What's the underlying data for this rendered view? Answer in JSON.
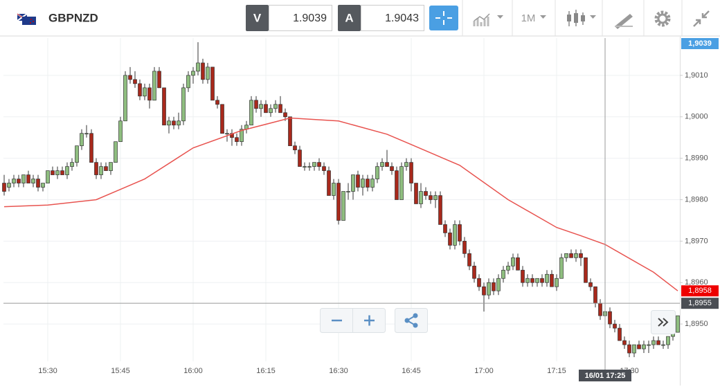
{
  "header": {
    "symbol": "GBPNZD",
    "bid": {
      "label": "V",
      "value": 1.9039
    },
    "ask": {
      "label": "A",
      "value": 1.9043
    },
    "timeframe": "1M"
  },
  "chart_data": {
    "type": "candlestick",
    "x": [
      "15:21",
      "15:22",
      "15:23",
      "15:24",
      "15:25",
      "15:26",
      "15:27",
      "15:28",
      "15:29",
      "15:30",
      "15:31",
      "15:32",
      "15:33",
      "15:34",
      "15:35",
      "15:36",
      "15:37",
      "15:38",
      "15:39",
      "15:40",
      "15:41",
      "15:42",
      "15:43",
      "15:44",
      "15:45",
      "15:46",
      "15:47",
      "15:48",
      "15:49",
      "15:50",
      "15:51",
      "15:52",
      "15:53",
      "15:54",
      "15:55",
      "15:56",
      "15:57",
      "15:58",
      "15:59",
      "16:00",
      "16:01",
      "16:02",
      "16:03",
      "16:04",
      "16:05",
      "16:06",
      "16:07",
      "16:08",
      "16:09",
      "16:10",
      "16:11",
      "16:12",
      "16:13",
      "16:14",
      "16:15",
      "16:16",
      "16:17",
      "16:18",
      "16:19",
      "16:20",
      "16:21",
      "16:22",
      "16:23",
      "16:24",
      "16:25",
      "16:26",
      "16:27",
      "16:28",
      "16:29",
      "16:30",
      "16:31",
      "16:32",
      "16:33",
      "16:34",
      "16:35",
      "16:36",
      "16:37",
      "16:38",
      "16:39",
      "16:40",
      "16:41",
      "16:42",
      "16:43",
      "16:44",
      "16:45",
      "16:46",
      "16:47",
      "16:48",
      "16:49",
      "16:50",
      "16:51",
      "16:52",
      "16:53",
      "16:54",
      "16:55",
      "16:56",
      "16:57",
      "16:58",
      "16:59",
      "17:00",
      "17:01",
      "17:02",
      "17:03",
      "17:04",
      "17:05",
      "17:06",
      "17:07",
      "17:08",
      "17:09",
      "17:10",
      "17:11",
      "17:12",
      "17:13",
      "17:14",
      "17:15",
      "17:16",
      "17:17",
      "17:18",
      "17:19",
      "17:20",
      "17:21",
      "17:22",
      "17:23",
      "17:24",
      "17:25",
      "17:26",
      "17:27",
      "17:28",
      "17:29",
      "17:30",
      "17:31",
      "17:32",
      "17:33",
      "17:34",
      "17:35",
      "17:36",
      "17:37",
      "17:38",
      "17:39",
      "17:40"
    ],
    "open": [
      1.8984,
      1.8983,
      1.8984,
      1.8985,
      1.8984,
      1.8986,
      1.8984,
      1.8985,
      1.8983,
      1.8984,
      1.8987,
      1.8986,
      1.8987,
      1.8986,
      1.8988,
      1.8989,
      1.8993,
      1.8996,
      1.8996,
      1.8989,
      1.8986,
      1.8988,
      1.8987,
      1.8989,
      1.8994,
      1.8999,
      1.901,
      1.9009,
      1.9008,
      1.9005,
      1.9007,
      1.9004,
      1.9011,
      1.9007,
      1.8998,
      1.8999,
      1.8998,
      1.8999,
      1.9007,
      1.901,
      1.9011,
      1.9013,
      1.9009,
      1.9012,
      1.9004,
      1.9003,
      1.8996,
      1.8996,
      1.8995,
      1.8994,
      1.8997,
      1.8998,
      1.9004,
      1.9002,
      1.9003,
      1.9001,
      1.9002,
      1.9003,
      1.9001,
      1.9,
      1.8993,
      1.8992,
      1.8988,
      1.8988,
      1.8988,
      1.8989,
      1.8988,
      1.8987,
      1.8981,
      1.8984,
      1.8975,
      1.8982,
      1.8982,
      1.8986,
      1.8983,
      1.8985,
      1.8983,
      1.8985,
      1.8988,
      1.8989,
      1.8988,
      1.8987,
      1.898,
      1.8988,
      1.8989,
      1.8984,
      1.8979,
      1.8982,
      1.8981,
      1.898,
      1.8981,
      1.8974,
      1.8972,
      1.8969,
      1.8974,
      1.897,
      1.8967,
      1.8964,
      1.8961,
      1.8959,
      1.8957,
      1.896,
      1.8958,
      1.8961,
      1.8963,
      1.8964,
      1.8966,
      1.8963,
      1.896,
      1.8961,
      1.896,
      1.8961,
      1.896,
      1.8962,
      1.8959,
      1.8961,
      1.8966,
      1.8967,
      1.8966,
      1.8967,
      1.8966,
      1.896,
      1.8959,
      1.8955,
      1.8952,
      1.8953,
      1.895,
      1.8949,
      1.8946,
      1.8945,
      1.8943,
      1.8945,
      1.8944,
      1.8945,
      1.8945,
      1.8946,
      1.8945,
      1.8945,
      1.8947,
      1.8948
    ],
    "high": [
      1.8986,
      1.8985,
      1.8986,
      1.8986,
      1.8986,
      1.8987,
      1.8986,
      1.8986,
      1.8984,
      1.8987,
      1.8988,
      1.8988,
      1.8988,
      1.8989,
      1.899,
      1.8993,
      1.8997,
      1.8998,
      1.8997,
      1.899,
      1.8989,
      1.8989,
      1.8989,
      1.8994,
      1.9,
      1.9011,
      1.9012,
      1.9011,
      1.9009,
      1.9008,
      1.9008,
      1.9012,
      1.9012,
      1.9007,
      1.9,
      1.9,
      1.9001,
      1.9008,
      1.9011,
      1.9012,
      1.9018,
      1.9014,
      1.9013,
      1.9012,
      1.9005,
      1.9003,
      1.8997,
      1.8997,
      1.8996,
      1.8998,
      1.8999,
      1.9005,
      1.9005,
      1.9004,
      1.9004,
      1.9003,
      1.9004,
      1.9005,
      1.9002,
      1.9,
      1.8994,
      1.8993,
      1.8989,
      1.8989,
      1.8989,
      1.899,
      1.8989,
      1.8988,
      1.8985,
      1.8985,
      1.8982,
      1.8984,
      1.8986,
      1.8987,
      1.8986,
      1.8986,
      1.8986,
      1.8989,
      1.899,
      1.8992,
      1.8989,
      1.8988,
      1.8989,
      1.899,
      1.899,
      1.8984,
      1.8984,
      1.8983,
      1.8982,
      1.8982,
      1.8982,
      1.8975,
      1.8973,
      1.8975,
      1.8975,
      1.8971,
      1.8968,
      1.8965,
      1.8962,
      1.896,
      1.8961,
      1.8961,
      1.8962,
      1.8964,
      1.8965,
      1.8967,
      1.8967,
      1.8964,
      1.8962,
      1.8962,
      1.8961,
      1.8962,
      1.8963,
      1.8963,
      1.8962,
      1.8967,
      1.8967,
      1.8968,
      1.8968,
      1.8968,
      1.8966,
      1.8961,
      1.8959,
      1.8956,
      1.8954,
      1.8954,
      1.8951,
      1.895,
      1.8947,
      1.8946,
      1.8945,
      1.8946,
      1.8946,
      1.8946,
      1.8947,
      1.8947,
      1.8946,
      1.8947,
      1.8949,
      1.8952
    ],
    "low": [
      1.8981,
      1.8982,
      1.8983,
      1.8983,
      1.8983,
      1.8984,
      1.8983,
      1.8982,
      1.8982,
      1.8984,
      1.8986,
      1.8985,
      1.8986,
      1.8985,
      1.8987,
      1.8988,
      1.8992,
      1.8995,
      1.8989,
      1.8985,
      1.8985,
      1.8987,
      1.8986,
      1.8989,
      1.8994,
      1.8999,
      1.9008,
      1.9007,
      1.9004,
      1.9004,
      1.9002,
      1.9004,
      1.9007,
      1.8998,
      1.8996,
      1.8997,
      1.8997,
      1.8998,
      1.9006,
      1.9008,
      1.901,
      1.9008,
      1.9008,
      1.9004,
      1.9002,
      1.8996,
      1.8994,
      1.8993,
      1.8993,
      1.8993,
      1.8996,
      1.8998,
      1.9001,
      1.9,
      1.9001,
      1.9,
      1.9001,
      1.9001,
      1.8999,
      1.8993,
      1.8991,
      1.8988,
      1.8987,
      1.8987,
      1.8987,
      1.8987,
      1.8986,
      1.8981,
      1.898,
      1.8974,
      1.8975,
      1.898,
      1.898,
      1.8982,
      1.8981,
      1.8982,
      1.8982,
      1.8984,
      1.8987,
      1.8988,
      1.8986,
      1.898,
      1.898,
      1.8987,
      1.8982,
      1.8979,
      1.8978,
      1.898,
      1.8979,
      1.8978,
      1.8974,
      1.8971,
      1.8968,
      1.8968,
      1.8969,
      1.8966,
      1.8963,
      1.896,
      1.8958,
      1.8953,
      1.8956,
      1.8957,
      1.8957,
      1.896,
      1.8962,
      1.8963,
      1.8963,
      1.8959,
      1.8959,
      1.8959,
      1.8959,
      1.8959,
      1.8959,
      1.8959,
      1.8958,
      1.8961,
      1.8965,
      1.8966,
      1.8965,
      1.8964,
      1.896,
      1.8958,
      1.8954,
      1.8951,
      1.8951,
      1.8949,
      1.8948,
      1.8946,
      1.8944,
      1.8942,
      1.8942,
      1.8944,
      1.8943,
      1.8943,
      1.8944,
      1.8945,
      1.8944,
      1.8944,
      1.8946,
      1.8948
    ],
    "close": [
      1.8982,
      1.8984,
      1.8985,
      1.8984,
      1.8986,
      1.8984,
      1.8985,
      1.8983,
      1.8984,
      1.8987,
      1.8986,
      1.8987,
      1.8986,
      1.8988,
      1.8989,
      1.8993,
      1.8996,
      1.8996,
      1.8989,
      1.8986,
      1.8988,
      1.8987,
      1.8989,
      1.8994,
      1.8999,
      1.901,
      1.9009,
      1.9008,
      1.9005,
      1.9007,
      1.9004,
      1.9011,
      1.9007,
      1.8998,
      1.8999,
      1.8998,
      1.8999,
      1.9007,
      1.901,
      1.9011,
      1.9013,
      1.9009,
      1.9012,
      1.9004,
      1.9003,
      1.8996,
      1.8996,
      1.8995,
      1.8994,
      1.8997,
      1.8998,
      1.9004,
      1.9002,
      1.9003,
      1.9001,
      1.9002,
      1.9003,
      1.9001,
      1.9,
      1.8993,
      1.8992,
      1.8988,
      1.8988,
      1.8988,
      1.8989,
      1.8988,
      1.8987,
      1.8981,
      1.8984,
      1.8975,
      1.8982,
      1.8982,
      1.8986,
      1.8983,
      1.8985,
      1.8983,
      1.8985,
      1.8988,
      1.8989,
      1.8988,
      1.8987,
      1.898,
      1.8988,
      1.8989,
      1.8984,
      1.8979,
      1.8982,
      1.8981,
      1.898,
      1.8981,
      1.8974,
      1.8972,
      1.8969,
      1.8974,
      1.897,
      1.8967,
      1.8964,
      1.8961,
      1.8959,
      1.8957,
      1.896,
      1.8958,
      1.8961,
      1.8963,
      1.8964,
      1.8966,
      1.8963,
      1.896,
      1.8961,
      1.896,
      1.8961,
      1.896,
      1.8962,
      1.8959,
      1.8961,
      1.8966,
      1.8967,
      1.8966,
      1.8967,
      1.8966,
      1.896,
      1.8959,
      1.8955,
      1.8952,
      1.8953,
      1.895,
      1.8949,
      1.8946,
      1.8945,
      1.8943,
      1.8945,
      1.8944,
      1.8945,
      1.8945,
      1.8946,
      1.8945,
      1.8945,
      1.8947,
      1.8948,
      1.8952
    ],
    "up_color": "#8fbe80",
    "down_color": "#a8291c",
    "ma": {
      "color": "#e8534f",
      "x": [
        "15:21",
        "15:30",
        "15:40",
        "15:45",
        "15:50",
        "16:00",
        "16:10",
        "16:20",
        "16:30",
        "16:40",
        "16:45",
        "16:55",
        "17:05",
        "17:15",
        "17:20",
        "17:25",
        "17:35",
        "17:40"
      ],
      "values": [
        1.89783,
        1.89787,
        1.898,
        1.89825,
        1.8985,
        1.89925,
        1.89967,
        1.89997,
        1.8999,
        1.89958,
        1.89933,
        1.89883,
        1.898,
        1.89733,
        1.89713,
        1.89692,
        1.89625,
        1.8958
      ]
    },
    "ylim": [
      1.8941,
      1.9019
    ],
    "yticks": [
      {
        "value": 1.895,
        "label": "1,8950"
      },
      {
        "value": 1.896,
        "label": "1,8960"
      },
      {
        "value": 1.897,
        "label": "1,8970"
      },
      {
        "value": 1.898,
        "label": "1,8980"
      },
      {
        "value": 1.899,
        "label": "1,8990"
      },
      {
        "value": 1.9,
        "label": "1,9000"
      },
      {
        "value": 1.901,
        "label": "1,9010"
      }
    ],
    "xticks": [
      "15:30",
      "15:45",
      "16:00",
      "16:15",
      "16:30",
      "16:45",
      "17:00",
      "17:15",
      "17:30"
    ],
    "grid": true,
    "bid_price": {
      "value": 1.9039,
      "label": "1,9039"
    },
    "ma_last": {
      "value": 1.8958,
      "label": "1,8958"
    },
    "crosshair": {
      "x": "17:25",
      "label": "16/01 17:25",
      "price": {
        "value": 1.8955,
        "label": "1,8955"
      }
    }
  }
}
